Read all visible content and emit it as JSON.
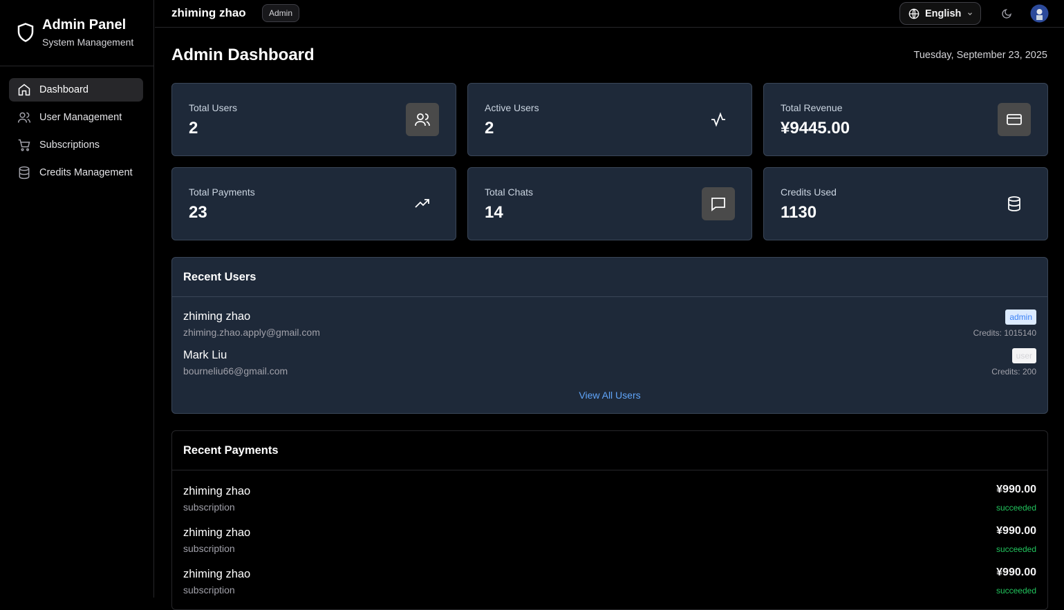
{
  "sidebar": {
    "title": "Admin Panel",
    "subtitle": "System Management",
    "nav": [
      "Dashboard",
      "User Management",
      "Subscriptions",
      "Credits Management"
    ]
  },
  "header": {
    "user": "zhiming zhao",
    "role": "Admin",
    "language": "English"
  },
  "dashboard": {
    "title": "Admin Dashboard",
    "date": "Tuesday, September 23, 2025",
    "stats": [
      {
        "label": "Total Users",
        "value": "2"
      },
      {
        "label": "Active Users",
        "value": "2"
      },
      {
        "label": "Total Revenue",
        "value": "¥9445.00"
      },
      {
        "label": "Total Payments",
        "value": "23"
      },
      {
        "label": "Total Chats",
        "value": "14"
      },
      {
        "label": "Credits Used",
        "value": "1130"
      }
    ]
  },
  "recent_users": {
    "title": "Recent Users",
    "rows": [
      {
        "name": "zhiming zhao",
        "email": "zhiming.zhao.apply@gmail.com",
        "role": "admin",
        "credits": "Credits: 1015140"
      },
      {
        "name": "Mark Liu",
        "email": "bourneliu66@gmail.com",
        "role": "user",
        "credits": "Credits: 200"
      }
    ],
    "link": "View All Users"
  },
  "recent_payments": {
    "title": "Recent Payments",
    "rows": [
      {
        "name": "zhiming zhao",
        "type": "subscription",
        "amount": "¥990.00",
        "status": "succeeded"
      },
      {
        "name": "zhiming zhao",
        "type": "subscription",
        "amount": "¥990.00",
        "status": "succeeded"
      },
      {
        "name": "zhiming zhao",
        "type": "subscription",
        "amount": "¥990.00",
        "status": "succeeded"
      }
    ]
  }
}
